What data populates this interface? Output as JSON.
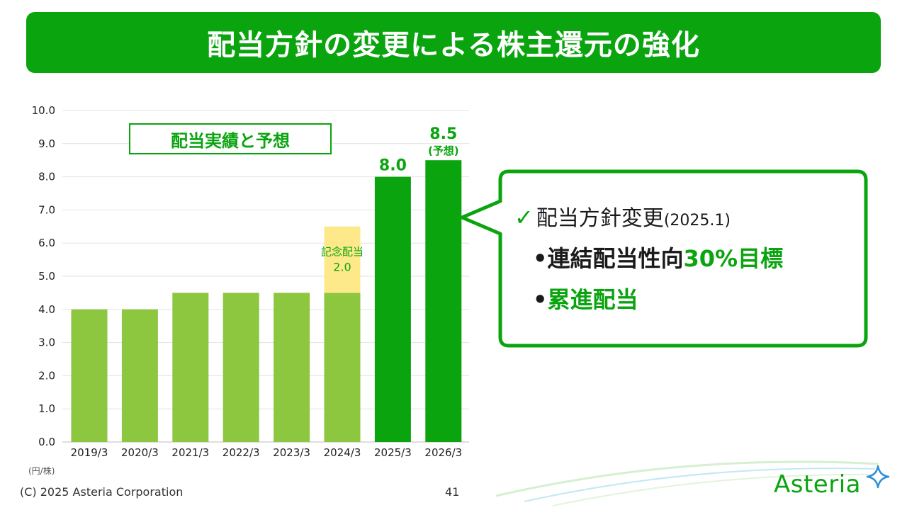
{
  "title": "配当方針の変更による株主還元の強化",
  "legend_box_label": "配当実績と予想",
  "callout": {
    "check_mark": "✓",
    "line1_main": "配当方針変更",
    "line1_date": "(2025.1)",
    "line2_bullet": "•",
    "line2_black": "連結配当性向",
    "line2_green": "30%目標",
    "line3_bullet": "•",
    "line3_green": "累進配当"
  },
  "unit_label": "(円/株)",
  "footer": {
    "copyright": "(C) 2025 Asteria Corporation",
    "page_number": "41",
    "logo_text": "Asteria"
  },
  "colors": {
    "title_bg": "#0aa40f",
    "bar_light": "#8dc63f",
    "bar_dark": "#0aa40f",
    "bar_commemorative": "#fde98a",
    "label_green": "#0aa40f"
  },
  "chart_data": {
    "type": "bar",
    "categories": [
      "2019/3",
      "2020/3",
      "2021/3",
      "2022/3",
      "2023/3",
      "2024/3",
      "2025/3",
      "2026/3"
    ],
    "series": [
      {
        "values": [
          4.0,
          4.0,
          4.5,
          4.5,
          4.5,
          4.5,
          8.0,
          8.5
        ]
      },
      {
        "values": [
          0,
          0,
          0,
          0,
          0,
          2.0,
          0,
          0
        ]
      }
    ],
    "bar_styles": [
      "light",
      "light",
      "light",
      "light",
      "light",
      "light",
      "dark",
      "dark"
    ],
    "stacked": true,
    "yticks": [
      "0.0",
      "1.0",
      "2.0",
      "3.0",
      "4.0",
      "5.0",
      "6.0",
      "7.0",
      "8.0",
      "9.0",
      "10.0"
    ],
    "ylim": [
      0,
      10
    ],
    "grid": true,
    "annotations": [
      {
        "category": "2024/3",
        "text": "記念配当",
        "value_text": "2.0"
      },
      {
        "category": "2025/3",
        "text": "8.0"
      },
      {
        "category": "2026/3",
        "text": "8.5",
        "subtext": "(予想)"
      }
    ]
  }
}
